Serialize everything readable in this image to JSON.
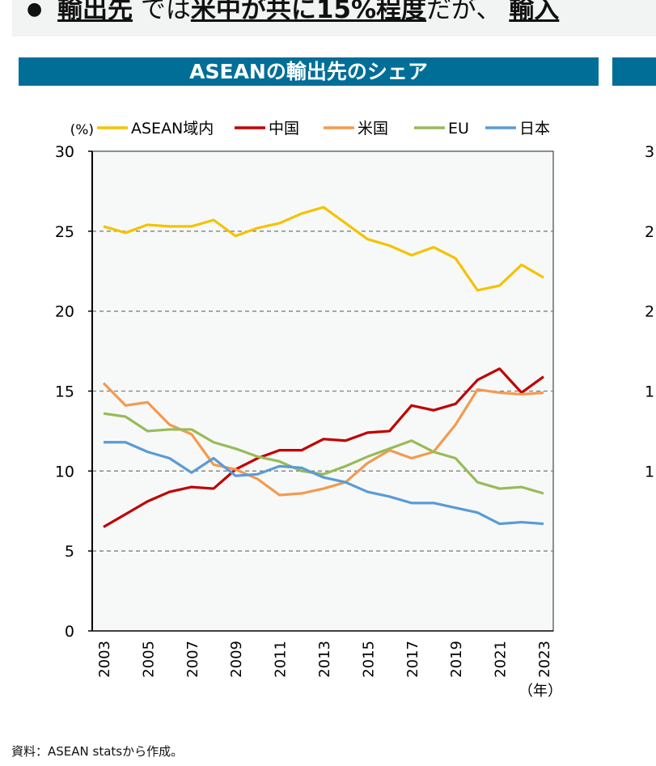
{
  "banner": {
    "segments": [
      {
        "text": "輸出先",
        "bold": true
      },
      {
        "text": "では",
        "bold": false
      },
      {
        "text": "米中が共に15%程度",
        "bold": true
      },
      {
        "text": "だが、",
        "bold": false
      },
      {
        "text": "輸入",
        "bold": true
      }
    ]
  },
  "header": {
    "title": "ASEANの輸出先のシェア"
  },
  "right_chart_ticks": [
    "3",
    "2",
    "2",
    "1",
    "1"
  ],
  "source_note": "資料：ASEAN statsから作成。",
  "chart_data": {
    "type": "line",
    "title": "ASEANの輸出先のシェア",
    "ylabel": "(%)",
    "xlabel": "（年）",
    "ylim": [
      0,
      30
    ],
    "yticks": [
      0,
      5,
      10,
      15,
      20,
      25,
      30
    ],
    "xticks": [
      2003,
      2005,
      2007,
      2009,
      2011,
      2013,
      2015,
      2017,
      2019,
      2021,
      2023
    ],
    "grid": "horizontal dashed",
    "legend": "top",
    "x": [
      2003,
      2004,
      2005,
      2006,
      2007,
      2008,
      2009,
      2010,
      2011,
      2012,
      2013,
      2014,
      2015,
      2016,
      2017,
      2018,
      2019,
      2020,
      2021,
      2022,
      2023
    ],
    "series": [
      {
        "name": "ASEAN域内",
        "color": "#f5c200",
        "values": [
          25.3,
          24.9,
          25.4,
          25.3,
          25.3,
          25.7,
          24.7,
          25.2,
          25.5,
          26.1,
          26.5,
          25.5,
          24.5,
          24.1,
          23.5,
          24.0,
          23.3,
          21.3,
          21.6,
          22.9,
          22.1
        ]
      },
      {
        "name": "中国",
        "color": "#c00000",
        "values": [
          6.5,
          7.3,
          8.1,
          8.7,
          9.0,
          8.9,
          10.1,
          10.8,
          11.3,
          11.3,
          12.0,
          11.9,
          12.4,
          12.5,
          14.1,
          13.8,
          14.2,
          15.7,
          16.4,
          14.9,
          15.9
        ]
      },
      {
        "name": "米国",
        "color": "#f39a4f",
        "values": [
          15.5,
          14.1,
          14.3,
          12.9,
          12.3,
          10.4,
          10.1,
          9.5,
          8.5,
          8.6,
          8.9,
          9.3,
          10.5,
          11.3,
          10.8,
          11.2,
          12.9,
          15.1,
          14.9,
          14.8,
          14.9
        ]
      },
      {
        "name": "EU",
        "color": "#98bb58",
        "values": [
          13.6,
          13.4,
          12.5,
          12.6,
          12.6,
          11.8,
          11.4,
          10.9,
          10.6,
          10.0,
          9.8,
          10.3,
          10.9,
          11.4,
          11.9,
          11.2,
          10.8,
          9.3,
          8.9,
          9.0,
          8.6
        ]
      },
      {
        "name": "日本",
        "color": "#5b9bd5",
        "values": [
          11.8,
          11.8,
          11.2,
          10.8,
          9.9,
          10.8,
          9.7,
          9.8,
          10.3,
          10.2,
          9.6,
          9.3,
          8.7,
          8.4,
          8.0,
          8.0,
          7.7,
          7.4,
          6.7,
          6.8,
          6.7
        ]
      }
    ]
  }
}
